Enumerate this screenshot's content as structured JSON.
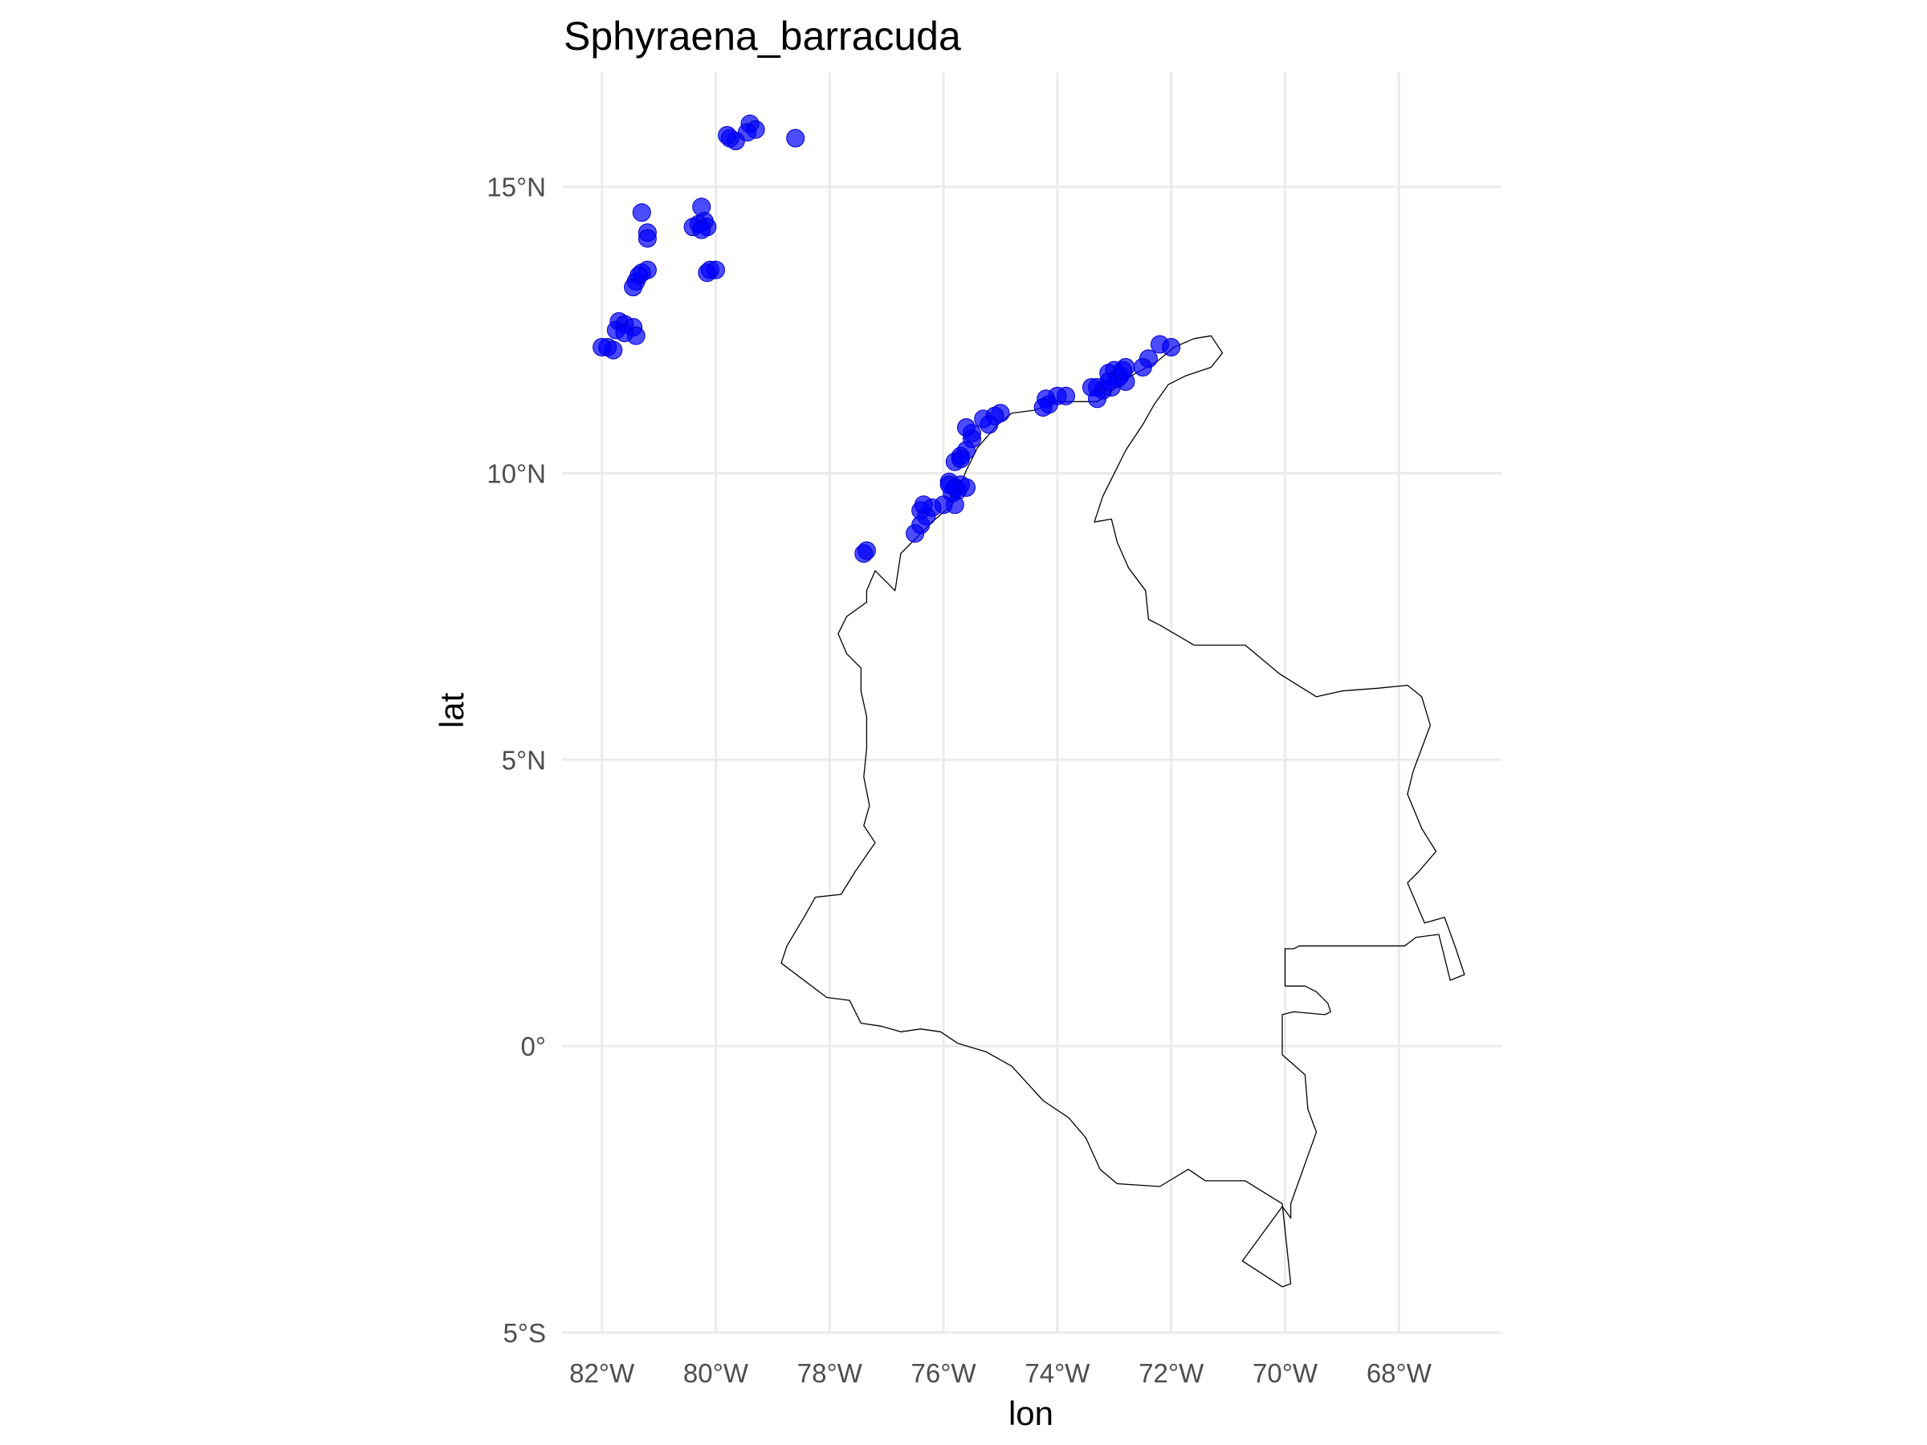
{
  "chart_data": {
    "type": "scatter",
    "title": "Sphyraena_barracuda",
    "xlabel": "lon",
    "ylabel": "lat",
    "xlim": [
      -82.7,
      -66.2
    ],
    "ylim": [
      -5,
      17
    ],
    "x_ticks": [
      {
        "value": -82,
        "label": "82°W"
      },
      {
        "value": -80,
        "label": "80°W"
      },
      {
        "value": -78,
        "label": "78°W"
      },
      {
        "value": -76,
        "label": "76°W"
      },
      {
        "value": -74,
        "label": "74°W"
      },
      {
        "value": -72,
        "label": "72°W"
      },
      {
        "value": -70,
        "label": "70°W"
      },
      {
        "value": -68,
        "label": "68°W"
      }
    ],
    "y_ticks": [
      {
        "value": 15,
        "label": "15°N"
      },
      {
        "value": 10,
        "label": "10°N"
      },
      {
        "value": 5,
        "label": "5°N"
      },
      {
        "value": 0,
        "label": "0°"
      },
      {
        "value": -5,
        "label": "5°S"
      }
    ],
    "grid": true,
    "point_color": "#0000ff",
    "border_color": "#000000",
    "points": [
      [
        -79.75,
        15.85
      ],
      [
        -79.65,
        15.8
      ],
      [
        -79.8,
        15.9
      ],
      [
        -79.4,
        16.1
      ],
      [
        -79.3,
        16.0
      ],
      [
        -79.45,
        15.95
      ],
      [
        -78.6,
        15.85
      ],
      [
        -81.3,
        14.55
      ],
      [
        -81.2,
        14.2
      ],
      [
        -81.2,
        14.1
      ],
      [
        -80.25,
        14.65
      ],
      [
        -80.3,
        14.35
      ],
      [
        -80.2,
        14.4
      ],
      [
        -80.4,
        14.3
      ],
      [
        -80.15,
        14.3
      ],
      [
        -80.25,
        14.25
      ],
      [
        -80.1,
        13.55
      ],
      [
        -80.0,
        13.55
      ],
      [
        -80.15,
        13.5
      ],
      [
        -81.4,
        13.35
      ],
      [
        -81.3,
        13.5
      ],
      [
        -81.2,
        13.55
      ],
      [
        -81.35,
        13.45
      ],
      [
        -81.45,
        13.25
      ],
      [
        -81.7,
        12.65
      ],
      [
        -81.6,
        12.6
      ],
      [
        -81.75,
        12.5
      ],
      [
        -81.45,
        12.55
      ],
      [
        -81.4,
        12.4
      ],
      [
        -81.6,
        12.45
      ],
      [
        -81.9,
        12.2
      ],
      [
        -81.8,
        12.15
      ],
      [
        -82.0,
        12.2
      ],
      [
        -72.2,
        12.25
      ],
      [
        -72.0,
        12.2
      ],
      [
        -72.4,
        12.0
      ],
      [
        -72.5,
        11.85
      ],
      [
        -72.8,
        11.85
      ],
      [
        -72.9,
        11.7
      ],
      [
        -73.0,
        11.8
      ],
      [
        -73.1,
        11.75
      ],
      [
        -72.95,
        11.65
      ],
      [
        -72.8,
        11.6
      ],
      [
        -73.05,
        11.5
      ],
      [
        -73.2,
        11.45
      ],
      [
        -73.3,
        11.5
      ],
      [
        -73.4,
        11.5
      ],
      [
        -73.3,
        11.3
      ],
      [
        -73.1,
        11.6
      ],
      [
        -72.85,
        11.8
      ],
      [
        -73.85,
        11.35
      ],
      [
        -74.0,
        11.35
      ],
      [
        -74.2,
        11.3
      ],
      [
        -74.15,
        11.2
      ],
      [
        -74.25,
        11.15
      ],
      [
        -75.0,
        11.05
      ],
      [
        -75.1,
        11.0
      ],
      [
        -75.3,
        10.95
      ],
      [
        -75.2,
        10.85
      ],
      [
        -75.5,
        10.7
      ],
      [
        -75.6,
        10.8
      ],
      [
        -75.5,
        10.6
      ],
      [
        -75.6,
        10.4
      ],
      [
        -75.7,
        10.3
      ],
      [
        -75.8,
        10.2
      ],
      [
        -75.7,
        10.25
      ],
      [
        -75.9,
        9.85
      ],
      [
        -75.8,
        9.75
      ],
      [
        -75.7,
        9.8
      ],
      [
        -75.85,
        9.65
      ],
      [
        -75.75,
        9.7
      ],
      [
        -75.6,
        9.75
      ],
      [
        -75.9,
        9.8
      ],
      [
        -75.8,
        9.45
      ],
      [
        -76.0,
        9.45
      ],
      [
        -76.2,
        9.4
      ],
      [
        -76.4,
        9.35
      ],
      [
        -76.3,
        9.25
      ],
      [
        -76.35,
        9.45
      ],
      [
        -76.4,
        9.1
      ],
      [
        -76.5,
        8.95
      ],
      [
        -77.35,
        8.65
      ],
      [
        -77.4,
        8.6
      ]
    ],
    "colombia_border": [
      [
        -71.3,
        12.4
      ],
      [
        -71.1,
        12.1
      ],
      [
        -71.3,
        11.85
      ],
      [
        -71.75,
        11.7
      ],
      [
        -72.05,
        11.55
      ],
      [
        -72.3,
        11.2
      ],
      [
        -72.5,
        10.85
      ],
      [
        -72.8,
        10.4
      ],
      [
        -72.95,
        10.1
      ],
      [
        -73.2,
        9.6
      ],
      [
        -73.35,
        9.15
      ],
      [
        -73.05,
        9.2
      ],
      [
        -72.95,
        8.8
      ],
      [
        -72.75,
        8.35
      ],
      [
        -72.45,
        7.95
      ],
      [
        -72.4,
        7.45
      ],
      [
        -72.2,
        7.35
      ],
      [
        -71.6,
        7.0
      ],
      [
        -70.7,
        7.0
      ],
      [
        -70.1,
        6.5
      ],
      [
        -69.45,
        6.1
      ],
      [
        -69.0,
        6.2
      ],
      [
        -68.35,
        6.25
      ],
      [
        -67.85,
        6.3
      ],
      [
        -67.6,
        6.1
      ],
      [
        -67.45,
        5.6
      ],
      [
        -67.6,
        5.2
      ],
      [
        -67.75,
        4.8
      ],
      [
        -67.85,
        4.4
      ],
      [
        -67.6,
        3.8
      ],
      [
        -67.35,
        3.4
      ],
      [
        -67.65,
        3.05
      ],
      [
        -67.85,
        2.85
      ],
      [
        -67.55,
        2.15
      ],
      [
        -67.2,
        2.25
      ],
      [
        -67.0,
        1.7
      ],
      [
        -66.85,
        1.25
      ],
      [
        -67.1,
        1.15
      ],
      [
        -67.3,
        1.95
      ],
      [
        -67.7,
        1.9
      ],
      [
        -67.9,
        1.75
      ],
      [
        -69.75,
        1.75
      ],
      [
        -69.85,
        1.7
      ],
      [
        -70.0,
        1.7
      ],
      [
        -70.0,
        1.05
      ],
      [
        -69.65,
        1.05
      ],
      [
        -69.45,
        0.95
      ],
      [
        -69.25,
        0.75
      ],
      [
        -69.2,
        0.6
      ],
      [
        -69.3,
        0.55
      ],
      [
        -69.85,
        0.6
      ],
      [
        -70.05,
        0.55
      ],
      [
        -70.05,
        -0.15
      ],
      [
        -69.65,
        -0.5
      ],
      [
        -69.6,
        -1.1
      ],
      [
        -69.45,
        -1.5
      ],
      [
        -69.9,
        -2.75
      ],
      [
        -69.9,
        -3.0
      ],
      [
        -70.05,
        -2.8
      ],
      [
        -70.75,
        -3.75
      ],
      [
        -70.05,
        -4.2
      ],
      [
        -69.9,
        -4.15
      ],
      [
        -70.05,
        -2.75
      ],
      [
        -70.7,
        -2.35
      ],
      [
        -71.4,
        -2.35
      ],
      [
        -71.7,
        -2.15
      ],
      [
        -72.2,
        -2.45
      ],
      [
        -72.95,
        -2.4
      ],
      [
        -73.25,
        -2.15
      ],
      [
        -73.5,
        -1.6
      ],
      [
        -73.8,
        -1.25
      ],
      [
        -74.25,
        -0.95
      ],
      [
        -74.8,
        -0.35
      ],
      [
        -75.25,
        -0.1
      ],
      [
        -75.75,
        0.05
      ],
      [
        -76.05,
        0.25
      ],
      [
        -76.4,
        0.3
      ],
      [
        -76.75,
        0.25
      ],
      [
        -77.1,
        0.35
      ],
      [
        -77.45,
        0.4
      ],
      [
        -77.65,
        0.8
      ],
      [
        -78.05,
        0.85
      ],
      [
        -78.85,
        1.45
      ],
      [
        -78.75,
        1.75
      ],
      [
        -78.45,
        2.25
      ],
      [
        -78.25,
        2.6
      ],
      [
        -77.8,
        2.65
      ],
      [
        -77.55,
        3.05
      ],
      [
        -77.2,
        3.55
      ],
      [
        -77.4,
        3.85
      ],
      [
        -77.3,
        4.2
      ],
      [
        -77.4,
        4.7
      ],
      [
        -77.35,
        5.2
      ],
      [
        -77.35,
        5.75
      ],
      [
        -77.45,
        6.2
      ],
      [
        -77.45,
        6.6
      ],
      [
        -77.7,
        6.85
      ],
      [
        -77.85,
        7.2
      ],
      [
        -77.7,
        7.5
      ],
      [
        -77.35,
        7.75
      ],
      [
        -77.35,
        7.95
      ],
      [
        -77.2,
        8.3
      ],
      [
        -76.85,
        7.95
      ],
      [
        -76.75,
        8.6
      ],
      [
        -76.2,
        9.15
      ],
      [
        -75.85,
        9.45
      ],
      [
        -75.6,
        10.05
      ],
      [
        -75.4,
        10.45
      ],
      [
        -75.05,
        10.85
      ],
      [
        -74.8,
        11.05
      ],
      [
        -74.4,
        11.1
      ],
      [
        -74.05,
        11.25
      ],
      [
        -73.3,
        11.25
      ],
      [
        -72.7,
        11.7
      ],
      [
        -72.25,
        11.95
      ],
      [
        -71.95,
        12.2
      ],
      [
        -71.6,
        12.35
      ],
      [
        -71.3,
        12.4
      ]
    ]
  }
}
